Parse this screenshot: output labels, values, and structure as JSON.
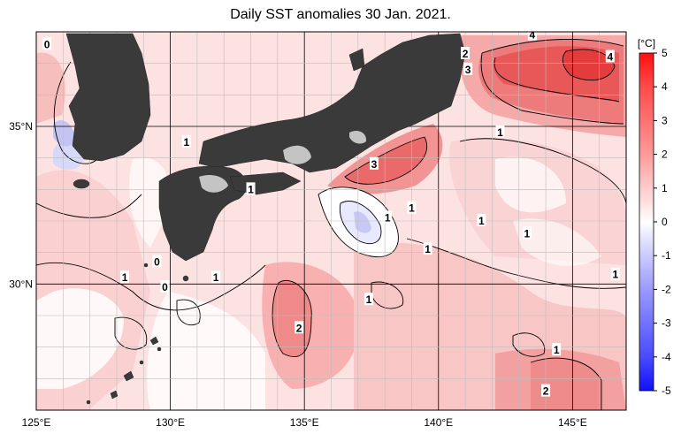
{
  "title": "Daily SST anomalies 30 Jan. 2021.",
  "map": {
    "lon_range": [
      125,
      147
    ],
    "lat_range": [
      26,
      38
    ],
    "lon_ticks": [
      {
        "v": 125,
        "label": "125°E"
      },
      {
        "v": 130,
        "label": "130°E"
      },
      {
        "v": 135,
        "label": "135°E"
      },
      {
        "v": 140,
        "label": "140°E"
      },
      {
        "v": 145,
        "label": "145°E"
      }
    ],
    "lat_ticks": [
      {
        "v": 35,
        "label": "35°N"
      },
      {
        "v": 30,
        "label": "30°N"
      }
    ],
    "contour_labels": [
      {
        "lon": 125.4,
        "lat": 37.6,
        "text": "0"
      },
      {
        "lon": 130.6,
        "lat": 34.5,
        "text": "1"
      },
      {
        "lon": 133.0,
        "lat": 33.0,
        "text": "1"
      },
      {
        "lon": 137.6,
        "lat": 33.8,
        "text": "3"
      },
      {
        "lon": 141.0,
        "lat": 37.3,
        "text": "2"
      },
      {
        "lon": 141.1,
        "lat": 36.8,
        "text": "3"
      },
      {
        "lon": 143.5,
        "lat": 37.9,
        "text": "4"
      },
      {
        "lon": 146.4,
        "lat": 37.2,
        "text": "4"
      },
      {
        "lon": 142.3,
        "lat": 34.8,
        "text": "1"
      },
      {
        "lon": 138.1,
        "lat": 32.1,
        "text": "1"
      },
      {
        "lon": 139.0,
        "lat": 32.4,
        "text": "1"
      },
      {
        "lon": 141.6,
        "lat": 32.0,
        "text": "1"
      },
      {
        "lon": 143.3,
        "lat": 31.6,
        "text": "1"
      },
      {
        "lon": 139.6,
        "lat": 31.1,
        "text": "1"
      },
      {
        "lon": 128.3,
        "lat": 30.2,
        "text": "1"
      },
      {
        "lon": 129.5,
        "lat": 30.7,
        "text": "0"
      },
      {
        "lon": 129.8,
        "lat": 29.9,
        "text": "0"
      },
      {
        "lon": 131.7,
        "lat": 30.2,
        "text": "1"
      },
      {
        "lon": 137.4,
        "lat": 29.5,
        "text": "1"
      },
      {
        "lon": 134.8,
        "lat": 28.6,
        "text": "2"
      },
      {
        "lon": 144.4,
        "lat": 27.9,
        "text": "1"
      },
      {
        "lon": 146.6,
        "lat": 30.3,
        "text": "1"
      },
      {
        "lon": 144.0,
        "lat": 26.6,
        "text": "2"
      }
    ]
  },
  "colorbar": {
    "unit": "[°C]",
    "levels": [
      "5",
      "4",
      "3",
      "2",
      "1",
      "0",
      "-1",
      "-2",
      "-3",
      "-4",
      "-5"
    ],
    "colors": {
      "pos_max": "#ff0000",
      "neg_max": "#0000ff",
      "mid": "#ffffff"
    }
  },
  "colors": {
    "land": "#3a3a3a",
    "ice_gray": "#c0c0c0",
    "grid": "#bbbbbb"
  }
}
